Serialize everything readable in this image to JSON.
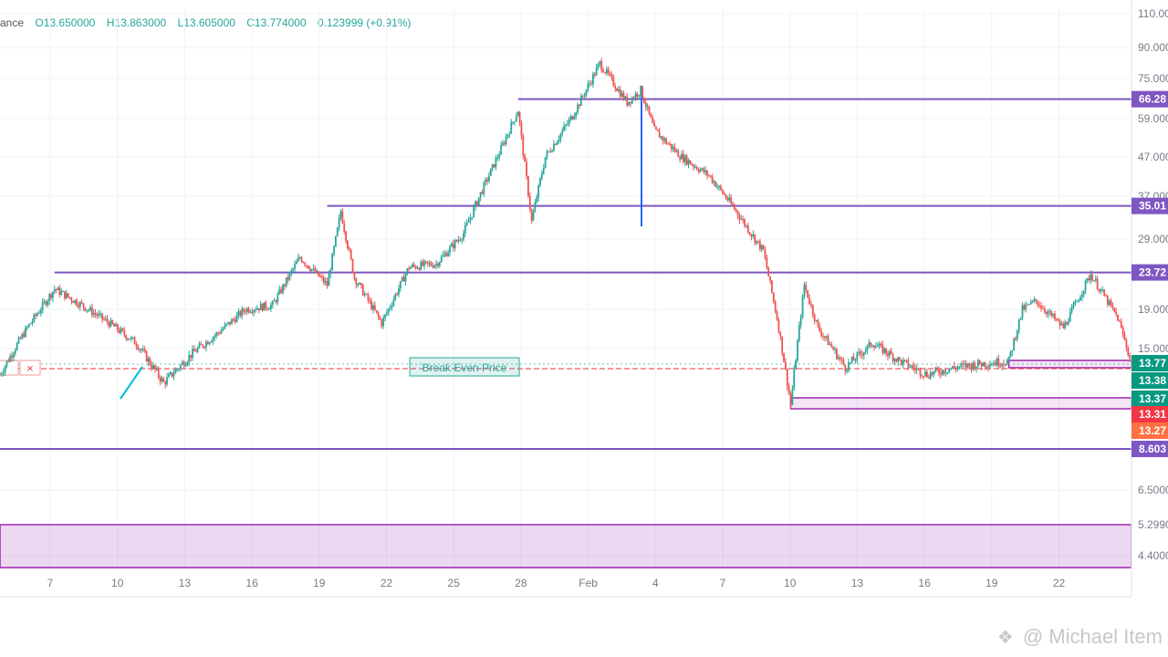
{
  "ohlc_bar": {
    "source": "ance",
    "open": "O13.650000",
    "high": "H13.863000",
    "low": "L13.605000",
    "close": "C13.774000",
    "change": "0.123999 (+0.91%)"
  },
  "watermark": "@ Michael Item",
  "colors": {
    "up": "#26a69a",
    "down": "#ef5350",
    "level_line": "#7e57c2",
    "zone": "#9c27b0",
    "measure_line": "#2962ff",
    "label_green": "#089981",
    "label_red": "#f23645",
    "label_orange": "#ff7043"
  },
  "chart_data": {
    "type": "candlestick",
    "scale": "log",
    "x_tick_labels": [
      "7",
      "10",
      "13",
      "16",
      "19",
      "22",
      "25",
      "28",
      "Feb",
      "4",
      "7",
      "10",
      "13",
      "16",
      "19",
      "22"
    ],
    "y_tick_labels": [
      "110.00",
      "90.000",
      "75.000",
      "59.000",
      "47.000",
      "37.000",
      "29.000",
      "19.000",
      "15.000",
      "8.6000",
      "6.5000",
      "5.2990",
      "4.4000"
    ],
    "y_range": [
      4.0,
      115
    ],
    "price_points": [
      [
        "Jan 4",
        13.0
      ],
      [
        "Jan 5",
        17.0
      ],
      [
        "Jan 6",
        21.5
      ],
      [
        "Jan 7",
        19.5
      ],
      [
        "Jan 8",
        17.5
      ],
      [
        "Jan 9",
        15.5
      ],
      [
        "Jan 10",
        12.4
      ],
      [
        "Jan 11",
        14.5
      ],
      [
        "Jan 12",
        16.5
      ],
      [
        "Jan 13",
        19.0
      ],
      [
        "Jan 14",
        19.5
      ],
      [
        "Jan 15",
        26.0
      ],
      [
        "Jan 16",
        22.0
      ],
      [
        "Jan 16.5",
        34.0
      ],
      [
        "Jan 17",
        23.0
      ],
      [
        "Jan 18",
        17.5
      ],
      [
        "Jan 19",
        24.5
      ],
      [
        "Jan 20",
        25.0
      ],
      [
        "Jan 21",
        30.0
      ],
      [
        "Jan 22",
        43.0
      ],
      [
        "Jan 23",
        62.0
      ],
      [
        "Jan 23.5",
        32.0
      ],
      [
        "Jan 24",
        47.0
      ],
      [
        "Jan 25",
        60.0
      ],
      [
        "Jan 26",
        82.0
      ],
      [
        "Jan 27",
        65.0
      ],
      [
        "Jan 27.5",
        70.0
      ],
      [
        "Jan 28",
        55.0
      ],
      [
        "Jan 29",
        47.0
      ],
      [
        "Jan 30",
        42.0
      ],
      [
        "Jan 31",
        34.0
      ],
      [
        "Feb 1",
        27.0
      ],
      [
        "Feb 1.5",
        18.0
      ],
      [
        "Feb 2",
        11.0
      ],
      [
        "Feb 2.5",
        22.0
      ],
      [
        "Feb 3",
        17.0
      ],
      [
        "Feb 4",
        13.5
      ],
      [
        "Feb 5",
        15.5
      ],
      [
        "Feb 6",
        14.0
      ],
      [
        "Feb 7",
        13.0
      ],
      [
        "Feb 8",
        13.5
      ],
      [
        "Feb 9",
        13.8
      ],
      [
        "Feb 10",
        14.0
      ],
      [
        "Feb 10.5",
        19.0
      ],
      [
        "Feb 11",
        20.0
      ],
      [
        "Feb 12",
        17.0
      ],
      [
        "Feb 13",
        23.5
      ],
      [
        "Feb 14",
        18.0
      ],
      [
        "Feb 14.5",
        13.774
      ]
    ],
    "horizontal_levels": [
      {
        "price_label": "66.28",
        "value": 66.28,
        "x_start": "Jan 23"
      },
      {
        "price_label": "35.01",
        "value": 35.01,
        "x_start": "Jan 16"
      },
      {
        "price_label": "23.72",
        "value": 23.72,
        "x_start": "Jan 6"
      },
      {
        "price_label": "8.603",
        "value": 8.603,
        "x_start": "Jan 4"
      }
    ],
    "zones": [
      {
        "from": 13.38,
        "to": 13.77,
        "x_start": "Feb 10"
      },
      {
        "from": 11.3,
        "to": 12.1,
        "x_start": "Feb 2"
      },
      {
        "from": 4.0,
        "to": 5.299,
        "x_start": "Jan 4"
      }
    ],
    "right_labels": [
      {
        "text": "13.77",
        "kind": "green-box",
        "value": 13.77
      },
      {
        "text": "13.38",
        "kind": "plain",
        "value": 13.38
      },
      {
        "text": "13.37",
        "kind": "green",
        "value": 13.37
      },
      {
        "text": "13.31",
        "kind": "red",
        "value": 13.31
      },
      {
        "text": "13.27",
        "kind": "orange",
        "value": 13.27
      }
    ],
    "break_even": {
      "label": "Break Even Price",
      "value": 13.3
    },
    "measure_line": {
      "x": "Feb 2",
      "from": 75.0,
      "to": 32.0
    }
  }
}
